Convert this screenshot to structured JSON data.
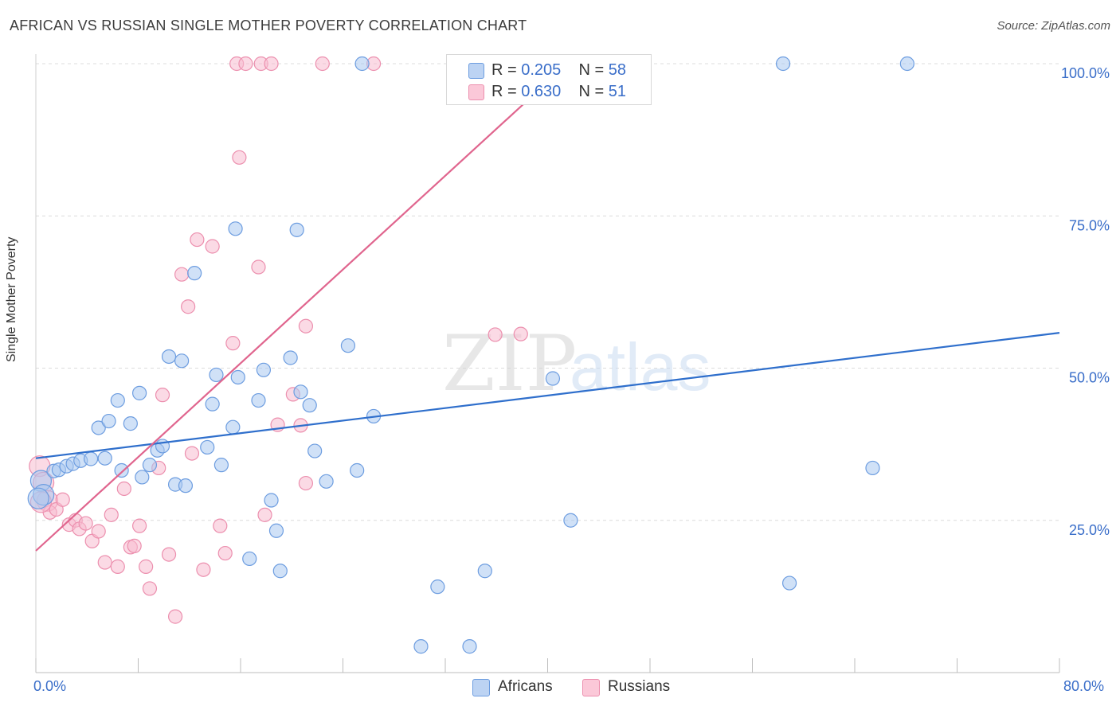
{
  "header": {
    "title": "AFRICAN VS RUSSIAN SINGLE MOTHER POVERTY CORRELATION CHART",
    "source": "Source: ZipAtlas.com"
  },
  "watermark": {
    "part1": "ZIP",
    "part2": "atlas"
  },
  "legend": {
    "rows": [
      {
        "r_label": "R = ",
        "r_value": "0.205",
        "n_label": "N = ",
        "n_value": "58"
      },
      {
        "r_label": "R = ",
        "r_value": "0.630",
        "n_label": "N = ",
        "n_value": "51"
      }
    ]
  },
  "bottom_legend": {
    "africans": "Africans",
    "russians": "Russians"
  },
  "colors": {
    "africans_fill": "#a9c8f0",
    "africans_stroke": "#6d9de0",
    "africans_line": "#2f6fcc",
    "russians_fill": "#f8bcd0",
    "russians_stroke": "#ec8fae",
    "russians_line": "#e0658e",
    "axis_text": "#3a6ec9",
    "grid": "#dcdcdc"
  },
  "chart_data": {
    "type": "scatter",
    "title": "AFRICAN VS RUSSIAN SINGLE MOTHER POVERTY CORRELATION CHART",
    "xlabel": "",
    "ylabel": "Single Mother Poverty",
    "xlim": [
      0,
      80
    ],
    "ylim": [
      0,
      100
    ],
    "x_tick_labels": [
      "0.0%",
      "80.0%"
    ],
    "y_tick_labels": [
      "25.0%",
      "50.0%",
      "75.0%",
      "100.0%"
    ],
    "y_ticks": [
      25,
      50,
      75,
      100
    ],
    "grid": true,
    "legend_position": "top-center",
    "series": [
      {
        "name": "Africans",
        "r": 0.205,
        "n": 58,
        "trend": {
          "x": [
            0,
            80
          ],
          "y": [
            35.2,
            55.8
          ]
        },
        "points": [
          [
            0.4,
            31.5
          ],
          [
            0.6,
            29.2
          ],
          [
            1.4,
            33.1
          ],
          [
            1.8,
            33.3
          ],
          [
            2.4,
            33.9
          ],
          [
            2.9,
            34.3
          ],
          [
            3.5,
            34.8
          ],
          [
            4.3,
            35.1
          ],
          [
            5.4,
            35.2
          ],
          [
            4.9,
            40.2
          ],
          [
            5.7,
            41.3
          ],
          [
            6.4,
            44.7
          ],
          [
            6.7,
            33.2
          ],
          [
            7.4,
            40.9
          ],
          [
            8.1,
            45.9
          ],
          [
            8.3,
            32.1
          ],
          [
            8.9,
            34.1
          ],
          [
            9.5,
            36.5
          ],
          [
            9.9,
            37.2
          ],
          [
            10.4,
            51.9
          ],
          [
            10.9,
            30.9
          ],
          [
            11.4,
            51.2
          ],
          [
            11.7,
            30.7
          ],
          [
            12.4,
            65.6
          ],
          [
            13.4,
            37.0
          ],
          [
            13.8,
            44.1
          ],
          [
            14.1,
            48.9
          ],
          [
            14.5,
            34.1
          ],
          [
            15.4,
            40.3
          ],
          [
            15.8,
            48.5
          ],
          [
            15.6,
            72.9
          ],
          [
            16.7,
            18.7
          ],
          [
            17.4,
            44.7
          ],
          [
            17.8,
            49.7
          ],
          [
            18.8,
            23.3
          ],
          [
            18.4,
            28.3
          ],
          [
            19.1,
            16.7
          ],
          [
            19.9,
            51.7
          ],
          [
            20.4,
            72.7
          ],
          [
            20.7,
            46.1
          ],
          [
            21.4,
            43.9
          ],
          [
            21.8,
            36.4
          ],
          [
            22.7,
            31.4
          ],
          [
            24.4,
            53.7
          ],
          [
            25.1,
            33.2
          ],
          [
            26.4,
            42.1
          ],
          [
            25.5,
            100.0
          ],
          [
            30.1,
            4.3
          ],
          [
            31.4,
            14.1
          ],
          [
            33.9,
            4.3
          ],
          [
            35.1,
            16.7
          ],
          [
            40.4,
            48.3
          ],
          [
            41.8,
            25.0
          ],
          [
            58.4,
            100.0
          ],
          [
            58.9,
            14.7
          ],
          [
            65.4,
            33.6
          ],
          [
            68.1,
            100.0
          ],
          [
            0.2,
            28.6
          ]
        ]
      },
      {
        "name": "Russians",
        "r": 0.63,
        "n": 51,
        "trend": {
          "x": [
            0,
            40
          ],
          "y": [
            20.0,
            97.0
          ]
        },
        "points": [
          [
            0.3,
            33.9
          ],
          [
            0.6,
            31.2
          ],
          [
            0.9,
            28.2
          ],
          [
            1.1,
            26.3
          ],
          [
            1.6,
            26.8
          ],
          [
            2.1,
            28.4
          ],
          [
            2.6,
            24.3
          ],
          [
            3.1,
            25.0
          ],
          [
            3.4,
            23.6
          ],
          [
            3.9,
            24.5
          ],
          [
            4.4,
            21.6
          ],
          [
            4.9,
            23.2
          ],
          [
            5.4,
            18.1
          ],
          [
            5.9,
            25.9
          ],
          [
            6.4,
            17.4
          ],
          [
            6.9,
            30.2
          ],
          [
            7.4,
            20.6
          ],
          [
            7.7,
            20.8
          ],
          [
            8.1,
            24.1
          ],
          [
            8.6,
            17.4
          ],
          [
            8.9,
            13.8
          ],
          [
            9.6,
            33.6
          ],
          [
            9.9,
            45.6
          ],
          [
            10.4,
            19.4
          ],
          [
            10.9,
            9.2
          ],
          [
            11.4,
            65.4
          ],
          [
            11.9,
            60.1
          ],
          [
            12.2,
            36.0
          ],
          [
            12.6,
            71.1
          ],
          [
            13.1,
            16.9
          ],
          [
            13.8,
            70.0
          ],
          [
            14.4,
            24.1
          ],
          [
            14.8,
            19.6
          ],
          [
            15.4,
            54.1
          ],
          [
            15.7,
            100.0
          ],
          [
            15.9,
            84.6
          ],
          [
            16.4,
            100.0
          ],
          [
            17.4,
            66.6
          ],
          [
            17.6,
            100.0
          ],
          [
            17.9,
            25.9
          ],
          [
            18.4,
            100.0
          ],
          [
            18.9,
            40.7
          ],
          [
            20.1,
            45.7
          ],
          [
            20.7,
            40.6
          ],
          [
            21.1,
            31.1
          ],
          [
            21.1,
            56.9
          ],
          [
            22.4,
            100.0
          ],
          [
            26.4,
            100.0
          ],
          [
            35.9,
            55.5
          ],
          [
            37.9,
            55.6
          ],
          [
            0.4,
            28.0
          ]
        ]
      }
    ]
  }
}
